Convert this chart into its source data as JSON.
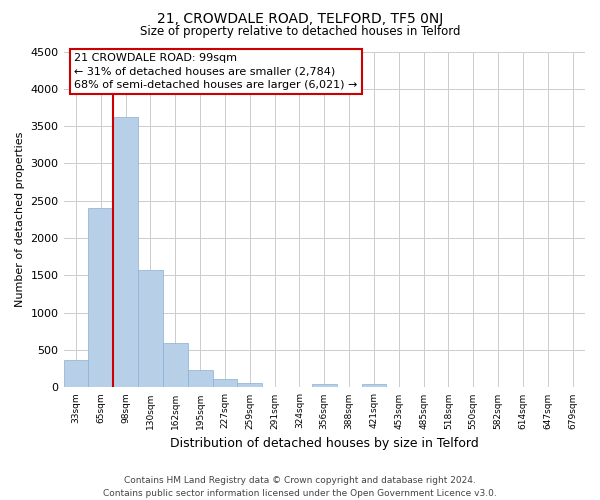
{
  "title": "21, CROWDALE ROAD, TELFORD, TF5 0NJ",
  "subtitle": "Size of property relative to detached houses in Telford",
  "xlabel": "Distribution of detached houses by size in Telford",
  "ylabel": "Number of detached properties",
  "bar_labels": [
    "33sqm",
    "65sqm",
    "98sqm",
    "130sqm",
    "162sqm",
    "195sqm",
    "227sqm",
    "259sqm",
    "291sqm",
    "324sqm",
    "356sqm",
    "388sqm",
    "421sqm",
    "453sqm",
    "485sqm",
    "518sqm",
    "550sqm",
    "582sqm",
    "614sqm",
    "647sqm",
    "679sqm"
  ],
  "bar_values": [
    370,
    2400,
    3620,
    1575,
    600,
    240,
    110,
    65,
    0,
    0,
    50,
    0,
    50,
    0,
    0,
    0,
    0,
    0,
    0,
    0,
    0
  ],
  "bar_color": "#b8cfe8",
  "bar_edge_color": "#8aafd4",
  "vline_color": "#cc0000",
  "vline_x_index": 2,
  "ylim": [
    0,
    4500
  ],
  "yticks": [
    0,
    500,
    1000,
    1500,
    2000,
    2500,
    3000,
    3500,
    4000,
    4500
  ],
  "annotation_line1": "21 CROWDALE ROAD: 99sqm",
  "annotation_line2": "← 31% of detached houses are smaller (2,784)",
  "annotation_line3": "68% of semi-detached houses are larger (6,021) →",
  "footer_line1": "Contains HM Land Registry data © Crown copyright and database right 2024.",
  "footer_line2": "Contains public sector information licensed under the Open Government Licence v3.0.",
  "background_color": "#ffffff",
  "grid_color": "#cccccc",
  "ann_box_color": "#cc0000"
}
